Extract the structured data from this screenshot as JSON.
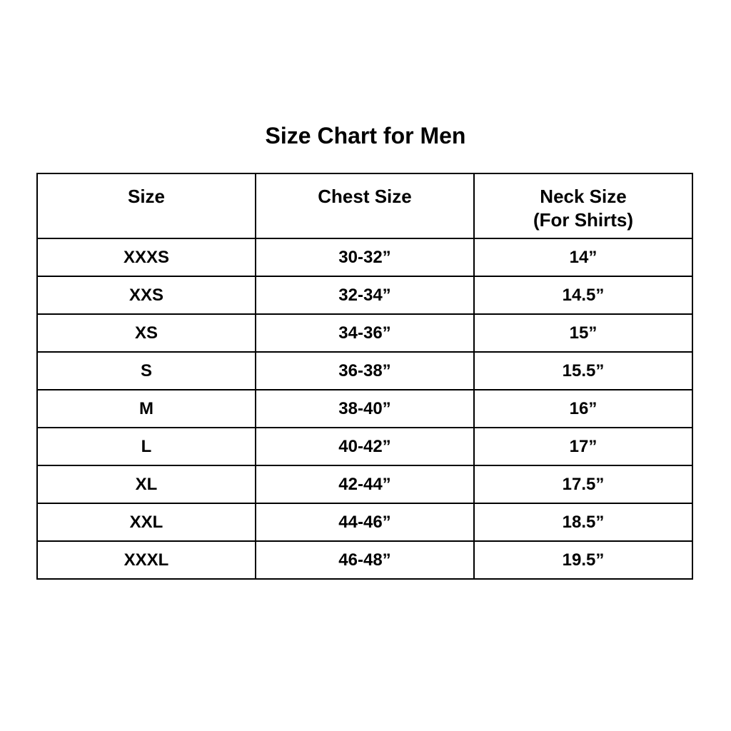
{
  "page": {
    "background_color": "#ffffff",
    "text_color": "#000000",
    "border_color": "#000000"
  },
  "chart_data": {
    "type": "table",
    "title": "Size Chart for Men",
    "columns": [
      "Size",
      "Chest Size",
      "Neck Size (For Shirts)"
    ],
    "header_lines": {
      "col3_line1": "Neck Size",
      "col3_line2": "(For Shirts)"
    },
    "rows": [
      [
        "XXXS",
        "30-32”",
        "14”"
      ],
      [
        "XXS",
        "32-34”",
        "14.5”"
      ],
      [
        "XS",
        "34-36”",
        "15”"
      ],
      [
        "S",
        "36-38”",
        "15.5”"
      ],
      [
        "M",
        "38-40”",
        "16”"
      ],
      [
        "L",
        "40-42”",
        "17”"
      ],
      [
        "XL",
        "42-44”",
        "17.5”"
      ],
      [
        "XXL",
        "44-46”",
        "18.5”"
      ],
      [
        "XXXL",
        "46-48”",
        "19.5”"
      ]
    ]
  }
}
